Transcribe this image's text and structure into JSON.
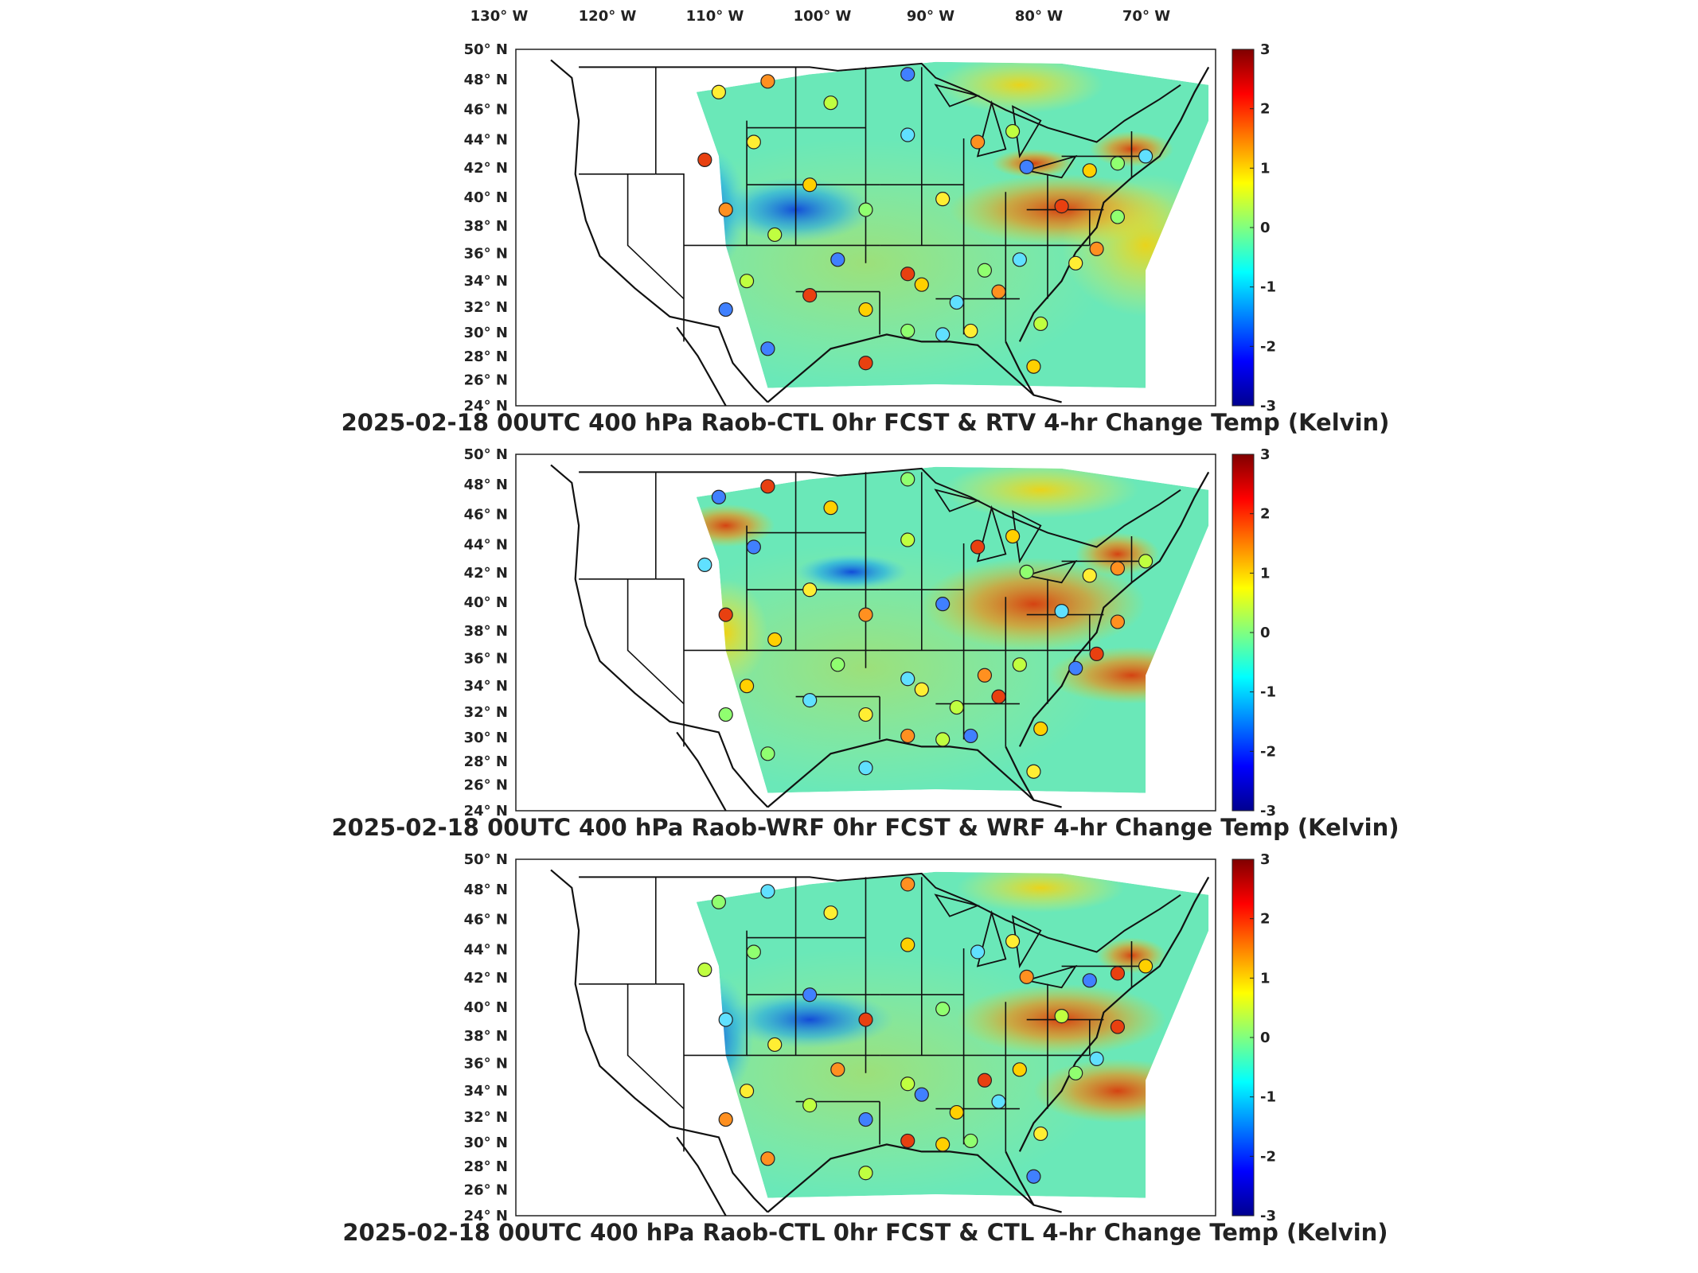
{
  "figure": {
    "longitude_labels": [
      "130",
      "120",
      "110",
      "100",
      "90",
      "80",
      "70"
    ],
    "longitude_hemisphere": "W",
    "latitude_labels": [
      "50",
      "48",
      "46",
      "44",
      "42",
      "40",
      "38",
      "36",
      "34",
      "32",
      "30",
      "28",
      "26",
      "24"
    ],
    "latitude_hemisphere": "N",
    "degree_symbol": "°",
    "colorbar": {
      "min": -3,
      "max": 3,
      "ticks": [
        "3",
        "2",
        "1",
        "0",
        "-1",
        "-2",
        "-3"
      ],
      "colormap": "jet",
      "colors": [
        "#00008f",
        "#0000ff",
        "#0080ff",
        "#00ffff",
        "#80ff80",
        "#ffff00",
        "#ff8000",
        "#ff0000",
        "#800000"
      ]
    },
    "panels": [
      {
        "title": "2025-02-18 00UTC 400 hPa Raob-CTL 0hr FCST & RTV 4-hr Change Temp (Kelvin)"
      },
      {
        "title": "2025-02-18 00UTC 400 hPa Raob-WRF 0hr FCST & WRF 4-hr Change Temp (Kelvin)"
      },
      {
        "title": "2025-02-18 00UTC 400 hPa Raob-CTL 0hr FCST & CTL 4-hr Change Temp (Kelvin)"
      }
    ]
  }
}
